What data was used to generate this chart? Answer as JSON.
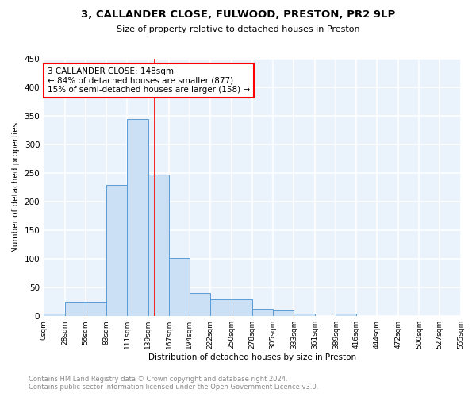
{
  "title": "3, CALLANDER CLOSE, FULWOOD, PRESTON, PR2 9LP",
  "subtitle": "Size of property relative to detached houses in Preston",
  "xlabel": "Distribution of detached houses by size in Preston",
  "ylabel": "Number of detached properties",
  "bar_color": "#cce0f5",
  "bar_edge_color": "#5b9bd5",
  "background_color": "#eaf2fb",
  "grid_color": "#ffffff",
  "bin_edges": [
    0,
    28,
    56,
    83,
    111,
    139,
    167,
    194,
    222,
    250,
    278,
    305,
    333,
    361,
    389,
    416,
    444,
    472,
    500,
    527,
    555
  ],
  "bin_labels": [
    "0sqm",
    "28sqm",
    "56sqm",
    "83sqm",
    "111sqm",
    "139sqm",
    "167sqm",
    "194sqm",
    "222sqm",
    "250sqm",
    "278sqm",
    "305sqm",
    "333sqm",
    "361sqm",
    "389sqm",
    "416sqm",
    "444sqm",
    "472sqm",
    "500sqm",
    "527sqm",
    "555sqm"
  ],
  "counts": [
    5,
    25,
    25,
    230,
    345,
    247,
    101,
    40,
    30,
    30,
    13,
    10,
    5,
    0,
    5,
    0,
    0,
    0,
    0,
    0
  ],
  "ylim": [
    0,
    450
  ],
  "yticks": [
    0,
    50,
    100,
    150,
    200,
    250,
    300,
    350,
    400,
    450
  ],
  "vline_x": 148,
  "annotation_title": "3 CALLANDER CLOSE: 148sqm",
  "annotation_line1": "← 84% of detached houses are smaller (877)",
  "annotation_line2": "15% of semi-detached houses are larger (158) →",
  "footer_line1": "Contains HM Land Registry data © Crown copyright and database right 2024.",
  "footer_line2": "Contains public sector information licensed under the Open Government Licence v3.0."
}
